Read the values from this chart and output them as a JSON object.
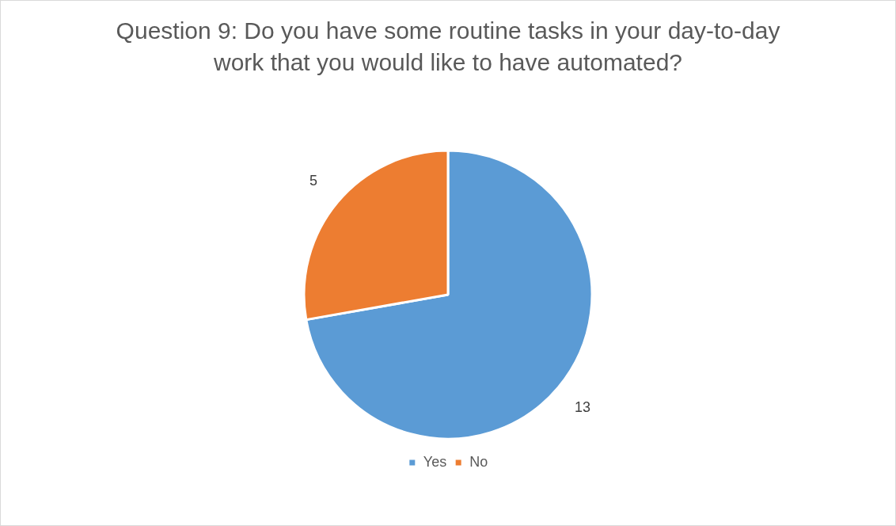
{
  "chart_data": {
    "type": "pie",
    "title": "Question 9: Do you have some routine tasks in your day-to-day work that you would like to have automated?",
    "categories": [
      "Yes",
      "No"
    ],
    "values": [
      13,
      5
    ],
    "colors": [
      "#5b9bd5",
      "#ed7d31"
    ],
    "data_labels": true,
    "legend": "bottom"
  }
}
